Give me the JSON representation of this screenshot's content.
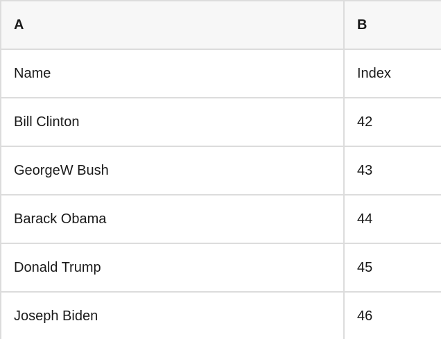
{
  "table": {
    "columns": [
      {
        "label": "A"
      },
      {
        "label": "B"
      }
    ],
    "rows": [
      {
        "a": "Name",
        "b": "Index"
      },
      {
        "a": "Bill Clinton",
        "b": "42"
      },
      {
        "a": "GeorgeW Bush",
        "b": "43"
      },
      {
        "a": "Barack Obama",
        "b": "44"
      },
      {
        "a": "Donald Trump",
        "b": "45"
      },
      {
        "a": "Joseph Biden",
        "b": "46"
      }
    ]
  },
  "colors": {
    "header_background": "#f7f7f7",
    "grid_border": "#dcdcdc",
    "text": "#1a1a1a",
    "background": "#ffffff"
  }
}
